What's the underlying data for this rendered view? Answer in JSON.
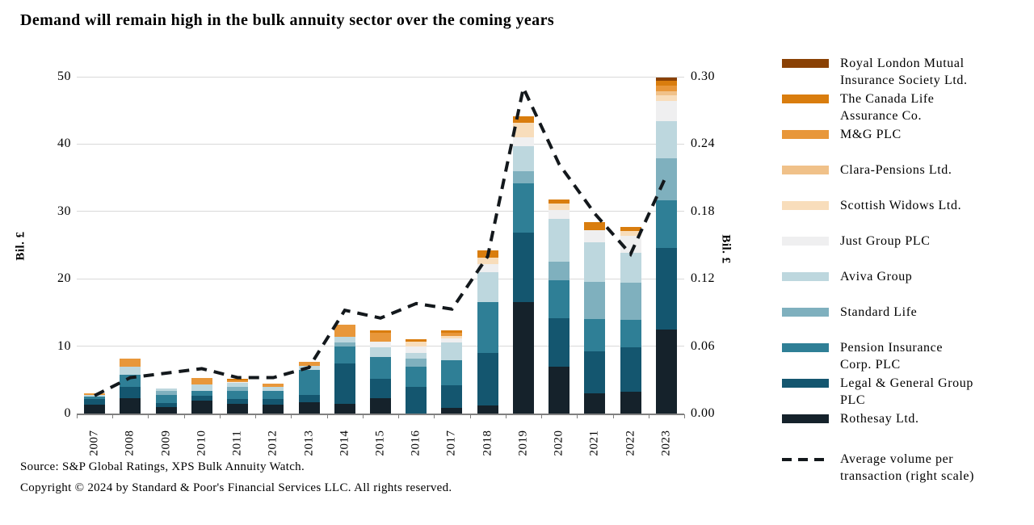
{
  "title": "Demand will remain high in the bulk annuity sector over the coming years",
  "source": {
    "line1": "Source: S&P Global Ratings, XPS Bulk Annuity Watch.",
    "line2": "Copyright © 2024 by Standard & Poor's Financial Services LLC. All rights reserved."
  },
  "left_axis": {
    "label": "Bil. £",
    "ticks": [
      0,
      10,
      20,
      30,
      40,
      50
    ],
    "max": 50
  },
  "right_axis": {
    "label": "Bil. £",
    "ticks": [
      "0.00",
      "0.06",
      "0.12",
      "0.18",
      "0.24",
      "0.30"
    ],
    "max": 0.3
  },
  "colors": {
    "grid": "#d9d9d9",
    "axis": "#7f7f7f",
    "line": "#13181c",
    "background": "#ffffff"
  },
  "chart_data": {
    "type": "bar",
    "stacked": true,
    "title": "Demand will remain high in the bulk annuity sector over the coming years",
    "xlabel": "",
    "ylabel_left": "Bil. £",
    "ylabel_right": "Bil. £",
    "ylim_left": [
      0,
      50
    ],
    "ylim_right": [
      0,
      0.3
    ],
    "grid": true,
    "legend_position": "right",
    "categories": [
      "2007",
      "2008",
      "2009",
      "2010",
      "2011",
      "2012",
      "2013",
      "2014",
      "2015",
      "2016",
      "2017",
      "2018",
      "2019",
      "2020",
      "2021",
      "2022",
      "2023"
    ],
    "series": [
      {
        "name": "Rothesay Ltd.",
        "color": "#15222b",
        "values": [
          1.3,
          2.3,
          1.0,
          1.9,
          1.4,
          1.3,
          1.7,
          1.4,
          2.3,
          0.0,
          0.8,
          1.2,
          16.6,
          7.0,
          3.0,
          3.2,
          12.5
        ]
      },
      {
        "name": "Legal & General Group PLC",
        "color": "#14566f",
        "values": [
          0.8,
          1.7,
          0.6,
          0.7,
          0.7,
          0.9,
          1.0,
          6.0,
          2.9,
          3.9,
          3.4,
          7.8,
          10.3,
          7.2,
          6.2,
          6.6,
          12.1
        ]
      },
      {
        "name": "Pension Insurance Corp. PLC",
        "color": "#2f7f96",
        "values": [
          0.4,
          1.8,
          1.1,
          0.8,
          1.2,
          1.1,
          3.8,
          2.5,
          3.2,
          3.1,
          3.7,
          7.6,
          7.3,
          5.6,
          4.8,
          4.1,
          7.0
        ]
      },
      {
        "name": "Standard Life",
        "color": "#7fb0be",
        "values": [
          0.0,
          0.0,
          0.7,
          0.0,
          0.6,
          0.0,
          0.0,
          0.7,
          0.0,
          1.2,
          0.0,
          0.0,
          1.8,
          2.8,
          5.6,
          5.5,
          6.3
        ]
      },
      {
        "name": "Aviva Group",
        "color": "#bdd7de",
        "values": [
          0.2,
          1.1,
          0.3,
          0.9,
          0.6,
          0.6,
          0.6,
          0.8,
          1.4,
          0.8,
          2.6,
          4.4,
          3.7,
          6.3,
          5.8,
          4.5,
          5.5
        ]
      },
      {
        "name": "Just Group PLC",
        "color": "#efeff0",
        "values": [
          0.0,
          0.0,
          0.0,
          0.0,
          0.2,
          0.0,
          0.0,
          0.0,
          0.9,
          1.0,
          0.6,
          1.2,
          1.3,
          1.3,
          1.8,
          2.5,
          3.0
        ]
      },
      {
        "name": "Scottish Widows Ltd.",
        "color": "#f8ddbb",
        "values": [
          0.0,
          0.0,
          0.0,
          0.0,
          0.0,
          0.0,
          0.0,
          0.0,
          0.0,
          0.7,
          0.4,
          0.9,
          2.2,
          1.0,
          0.0,
          0.7,
          0.9
        ]
      },
      {
        "name": "Clara-Pensions Ltd.",
        "color": "#f0c189",
        "values": [
          0.0,
          0.0,
          0.0,
          0.0,
          0.0,
          0.0,
          0.0,
          0.0,
          0.0,
          0.0,
          0.0,
          0.0,
          0.0,
          0.0,
          0.0,
          0.0,
          0.6
        ]
      },
      {
        "name": "M&G PLC",
        "color": "#e8973a",
        "values": [
          0.3,
          1.3,
          0.0,
          1.0,
          0.2,
          0.5,
          0.6,
          1.8,
          1.3,
          0.0,
          0.5,
          0.0,
          0.0,
          0.0,
          0.0,
          0.0,
          0.8
        ]
      },
      {
        "name": "The Canada Life Assurance Co.",
        "color": "#d97d0e",
        "values": [
          0.0,
          0.0,
          0.0,
          0.0,
          0.3,
          0.0,
          0.0,
          0.0,
          0.3,
          0.3,
          0.3,
          1.1,
          0.9,
          0.6,
          1.2,
          0.6,
          0.7
        ]
      },
      {
        "name": "Royal London Mutual Insurance Society Ltd.",
        "color": "#8a4104",
        "values": [
          0.0,
          0.0,
          0.0,
          0.0,
          0.0,
          0.0,
          0.0,
          0.0,
          0.0,
          0.0,
          0.0,
          0.0,
          0.0,
          0.0,
          0.0,
          0.0,
          0.5
        ]
      }
    ],
    "line_series": {
      "name": "Average volume per transaction (right scale)",
      "axis": "right",
      "style": "dashed",
      "color": "#13181c",
      "values": [
        0.016,
        0.032,
        0.036,
        0.04,
        0.032,
        0.032,
        0.041,
        0.092,
        0.085,
        0.098,
        0.093,
        0.14,
        0.29,
        0.222,
        0.178,
        0.142,
        0.212
      ]
    }
  },
  "legend": {
    "items": [
      {
        "label": "Royal London Mutual\nInsurance Society Ltd.",
        "color": "#8a4104",
        "type": "bar"
      },
      {
        "label": "The Canada Life\nAssurance Co.",
        "color": "#d97d0e",
        "type": "bar"
      },
      {
        "label": "M&G PLC",
        "color": "#e8973a",
        "type": "bar"
      },
      {
        "label": "Clara-Pensions Ltd.",
        "color": "#f0c189",
        "type": "bar"
      },
      {
        "label": "Scottish Widows Ltd.",
        "color": "#f8ddbb",
        "type": "bar"
      },
      {
        "label": "Just Group PLC",
        "color": "#efeff0",
        "type": "bar"
      },
      {
        "label": "Aviva Group",
        "color": "#bdd7de",
        "type": "bar"
      },
      {
        "label": "Standard Life",
        "color": "#7fb0be",
        "type": "bar"
      },
      {
        "label": "Pension Insurance\nCorp. PLC",
        "color": "#2f7f96",
        "type": "bar"
      },
      {
        "label": "Legal & General Group\nPLC",
        "color": "#14566f",
        "type": "bar"
      },
      {
        "label": "Rothesay Ltd.",
        "color": "#15222b",
        "type": "bar"
      },
      {
        "label": "Average volume per\ntransaction (right scale)",
        "color": "#13181c",
        "type": "line"
      }
    ]
  }
}
